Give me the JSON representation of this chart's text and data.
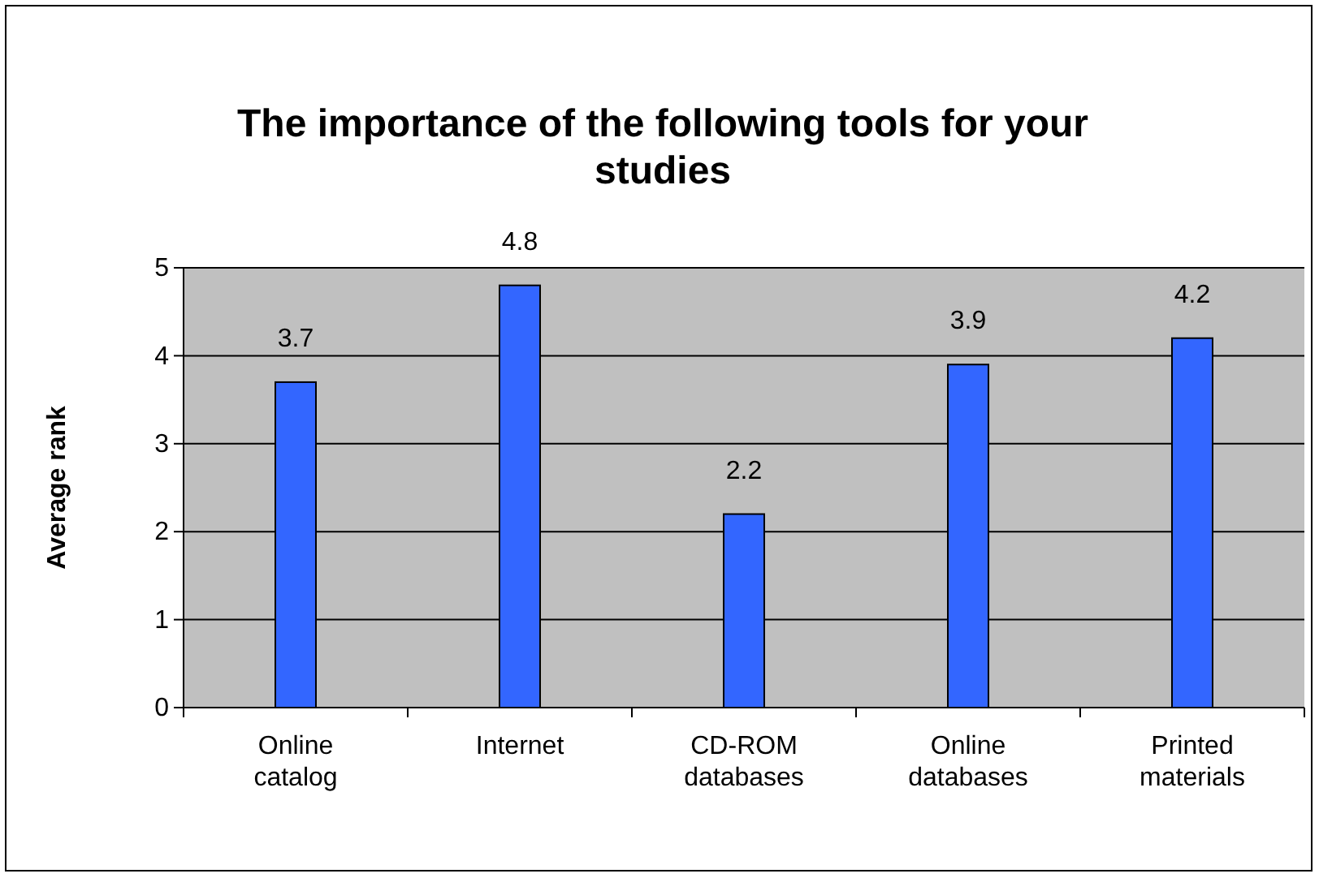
{
  "chart_data": {
    "type": "bar",
    "title": "The importance of the following tools for your studies",
    "ylabel": "Average rank",
    "categories": [
      "Online catalog",
      "Internet",
      "CD-ROM databases",
      "Online databases",
      "Printed materials"
    ],
    "values": [
      3.7,
      4.8,
      2.2,
      3.9,
      4.2
    ],
    "color": "#3366ff",
    "ylim": [
      0,
      5
    ],
    "yticks": [
      0,
      1,
      2,
      3,
      4,
      5
    ],
    "grid": "y",
    "data_labels": true
  }
}
